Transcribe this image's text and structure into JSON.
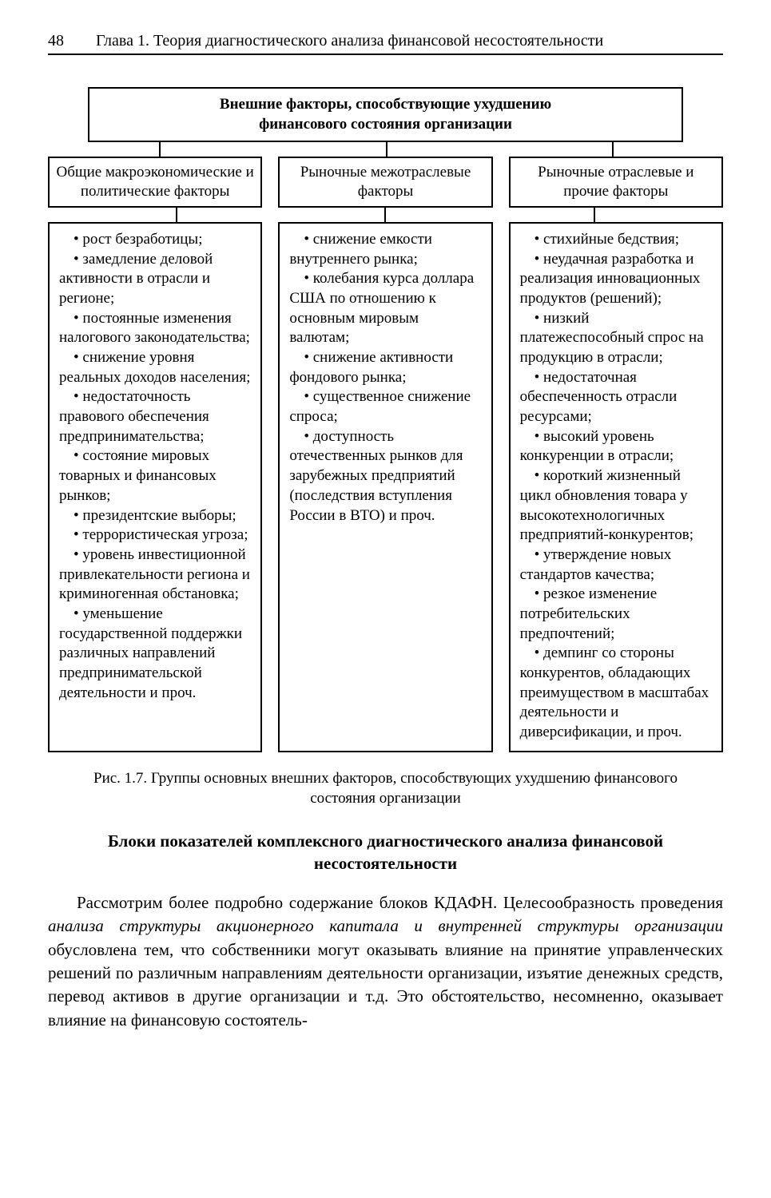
{
  "header": {
    "page_number": "48",
    "chapter_title": "Глава 1. Теория диагностического анализа финансовой несостоятельности"
  },
  "diagram": {
    "top_box_line1": "Внешние факторы, способствующие ухудшению",
    "top_box_line2": "финансового состояния организации",
    "columns": [
      {
        "title": "Общие макроэкономические и политические факторы",
        "items_html": "<div class='item'>• рост безработицы;</div><div class='item'>• замедление деловой активности в отрасли и регионе;</div><div class='item'>• постоянные изменения налогового законодательства;</div><div class='item'>• снижение уровня реальных доходов населения;</div><div class='item'>• недостаточность правового обеспечения предпринимательства;</div><div class='item'>• состояние мировых товарных и финансовых рынков;</div><div class='item'>• президентские выборы;</div><div class='item'>• террористическая угроза;</div><div class='item'>• уровень инвестиционной привлекательности региона и криминогенная обстановка;</div><div class='item'>• уменьшение государственной поддержки различных направлений предпринимательской деятельности и проч.</div>"
      },
      {
        "title": "Рыночные межотраслевые факторы",
        "items_html": "<div class='item'>• снижение емкости внутреннего рынка;</div><div class='item'>• колебания курса доллара США по отношению к основным мировым валютам;</div><div class='item'>• снижение активности фондового рынка;</div><div class='item'>• существенное снижение спроса;</div><div class='item'>• доступность отечественных рынков для зарубежных предприятий (последствия вступления России в ВТО) и проч.</div>"
      },
      {
        "title": "Рыночные отраслевые и прочие факторы",
        "items_html": "<div class='item'>• стихийные бедствия;</div><div class='item'>• неудачная разработка и реализация инновационных продуктов (решений);</div><div class='item'>• низкий платежеспособный спрос на продукцию в отрасли;</div><div class='item'>• недостаточная обеспеченность отрасли ресурсами;</div><div class='item'>• высокий уровень конкуренции в отрасли;</div><div class='item'>• короткий жизненный цикл обновления товара у высокотехнологичных предприятий-конкурентов;</div><div class='item'>• утверждение новых стандартов качества;</div><div class='item'>• резкое изменение потребительских предпочтений;</div><div class='item'>• демпинг со стороны конкурентов, обладающих преимуществом в масштабах деятельности и диверсификации, и проч.</div>"
      }
    ]
  },
  "caption": "Рис. 1.7. Группы основных внешних факторов, способствующих ухудшению финансового состояния организации",
  "section_heading": "Блоки показателей комплексного диагностического анализа финансовой несостоятельности",
  "body": {
    "para1_html": "Рассмотрим более подробно содержание блоков КДАФН. Целесообразность проведения <span class='italic'>анализа структуры акционерного капитала и внутренней структуры организации</span> обусловлена тем, что собственники могут оказывать влияние на принятие управленческих решений по различным направлениям деятельности организации, изъятие денежных средств, перевод активов в другие организации и т.д. Это обстоятельство, несомненно, оказывает влияние на финансовую состоятель-"
  },
  "style": {
    "border_color": "#000000",
    "background_color": "#ffffff",
    "text_color": "#000000",
    "base_fontsize_pt": 15,
    "heading_fontsize_pt": 16
  }
}
